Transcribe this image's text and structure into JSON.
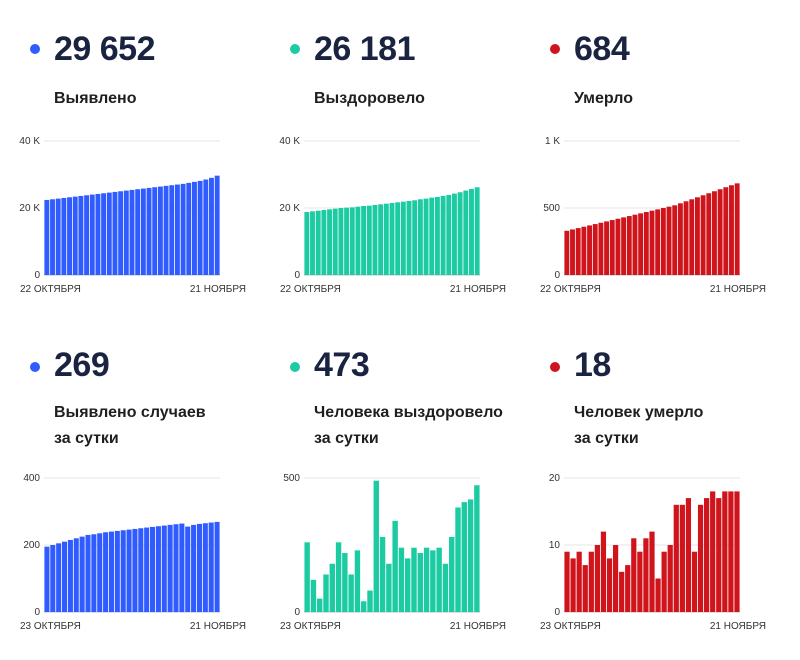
{
  "panels": [
    {
      "color": "#2f5bff",
      "value": "29 652",
      "label1": "Выявлено",
      "label2": ""
    },
    {
      "color": "#1ccba2",
      "value": "26 181",
      "label1": "Выздоровело",
      "label2": ""
    },
    {
      "color": "#d0141c",
      "value": "684",
      "label1": "Умерло",
      "label2": ""
    },
    {
      "color": "#2f5bff",
      "value": "269",
      "label1": "Выявлено случаев",
      "label2": "за сутки"
    },
    {
      "color": "#1ccba2",
      "value": "473",
      "label1": "Человека выздоровело",
      "label2": "за сутки"
    },
    {
      "color": "#d0141c",
      "value": "18",
      "label1": "Человек умерло",
      "label2": "за сутки"
    }
  ],
  "chart_data": [
    {
      "type": "bar",
      "color": "#2f5bff",
      "yticks": [
        {
          "v": 0,
          "t": "0"
        },
        {
          "v": 20000,
          "t": "20 K"
        },
        {
          "v": 40000,
          "t": "40 K"
        }
      ],
      "ylim": [
        0,
        40000
      ],
      "xstart": "22 ОКТЯБРЯ",
      "xend": "21 НОЯБРЯ",
      "values": [
        22400,
        22600,
        22800,
        23000,
        23200,
        23400,
        23600,
        23800,
        24000,
        24200,
        24400,
        24600,
        24800,
        25000,
        25200,
        25400,
        25600,
        25800,
        26000,
        26200,
        26400,
        26600,
        26800,
        27000,
        27200,
        27500,
        27800,
        28100,
        28500,
        29000,
        29652
      ]
    },
    {
      "type": "bar",
      "color": "#1ccba2",
      "yticks": [
        {
          "v": 0,
          "t": "0"
        },
        {
          "v": 20000,
          "t": "20 K"
        },
        {
          "v": 40000,
          "t": "40 K"
        }
      ],
      "ylim": [
        0,
        40000
      ],
      "xstart": "22 ОКТЯБРЯ",
      "xend": "21 НОЯБРЯ",
      "values": [
        18800,
        19000,
        19200,
        19400,
        19600,
        19800,
        20000,
        20100,
        20200,
        20400,
        20600,
        20700,
        20900,
        21100,
        21300,
        21500,
        21700,
        21900,
        22100,
        22300,
        22600,
        22800,
        23100,
        23300,
        23600,
        23900,
        24300,
        24700,
        25200,
        25700,
        26181
      ]
    },
    {
      "type": "bar",
      "color": "#d0141c",
      "yticks": [
        {
          "v": 0,
          "t": "0"
        },
        {
          "v": 500,
          "t": "500"
        },
        {
          "v": 1000,
          "t": "1 K"
        }
      ],
      "ylim": [
        0,
        1000
      ],
      "xstart": "22 ОКТЯБРЯ",
      "xend": "21 НОЯБРЯ",
      "values": [
        330,
        340,
        350,
        360,
        370,
        380,
        390,
        400,
        410,
        420,
        430,
        440,
        450,
        460,
        470,
        480,
        490,
        500,
        510,
        520,
        535,
        550,
        565,
        580,
        595,
        610,
        625,
        640,
        655,
        670,
        684
      ]
    },
    {
      "type": "bar",
      "color": "#2f5bff",
      "yticks": [
        {
          "v": 0,
          "t": "0"
        },
        {
          "v": 200,
          "t": "200"
        },
        {
          "v": 400,
          "t": "400"
        }
      ],
      "ylim": [
        0,
        400
      ],
      "xstart": "23 ОКТЯБРЯ",
      "xend": "21 НОЯБРЯ",
      "values": [
        195,
        200,
        205,
        210,
        215,
        220,
        225,
        230,
        232,
        235,
        238,
        240,
        242,
        244,
        246,
        248,
        250,
        252,
        254,
        256,
        258,
        260,
        262,
        264,
        255,
        260,
        263,
        265,
        267,
        269
      ]
    },
    {
      "type": "bar",
      "color": "#1ccba2",
      "yticks": [
        {
          "v": 0,
          "t": "0"
        },
        {
          "v": 500,
          "t": "500"
        }
      ],
      "ylim": [
        0,
        500
      ],
      "xstart": "23 ОКТЯБРЯ",
      "xend": "21 НОЯБРЯ",
      "values": [
        260,
        120,
        50,
        140,
        180,
        260,
        220,
        140,
        230,
        40,
        80,
        490,
        280,
        180,
        340,
        240,
        200,
        240,
        220,
        240,
        230,
        240,
        180,
        280,
        390,
        410,
        420,
        473
      ]
    },
    {
      "type": "bar",
      "color": "#d0141c",
      "yticks": [
        {
          "v": 0,
          "t": "0"
        },
        {
          "v": 10,
          "t": "10"
        },
        {
          "v": 20,
          "t": "20"
        }
      ],
      "ylim": [
        0,
        20
      ],
      "xstart": "23 ОКТЯБРЯ",
      "xend": "21 НОЯБРЯ",
      "values": [
        9,
        8,
        9,
        7,
        9,
        10,
        12,
        8,
        10,
        6,
        7,
        11,
        9,
        11,
        12,
        5,
        9,
        10,
        16,
        16,
        17,
        9,
        16,
        17,
        18,
        17,
        18,
        18,
        18
      ]
    }
  ]
}
